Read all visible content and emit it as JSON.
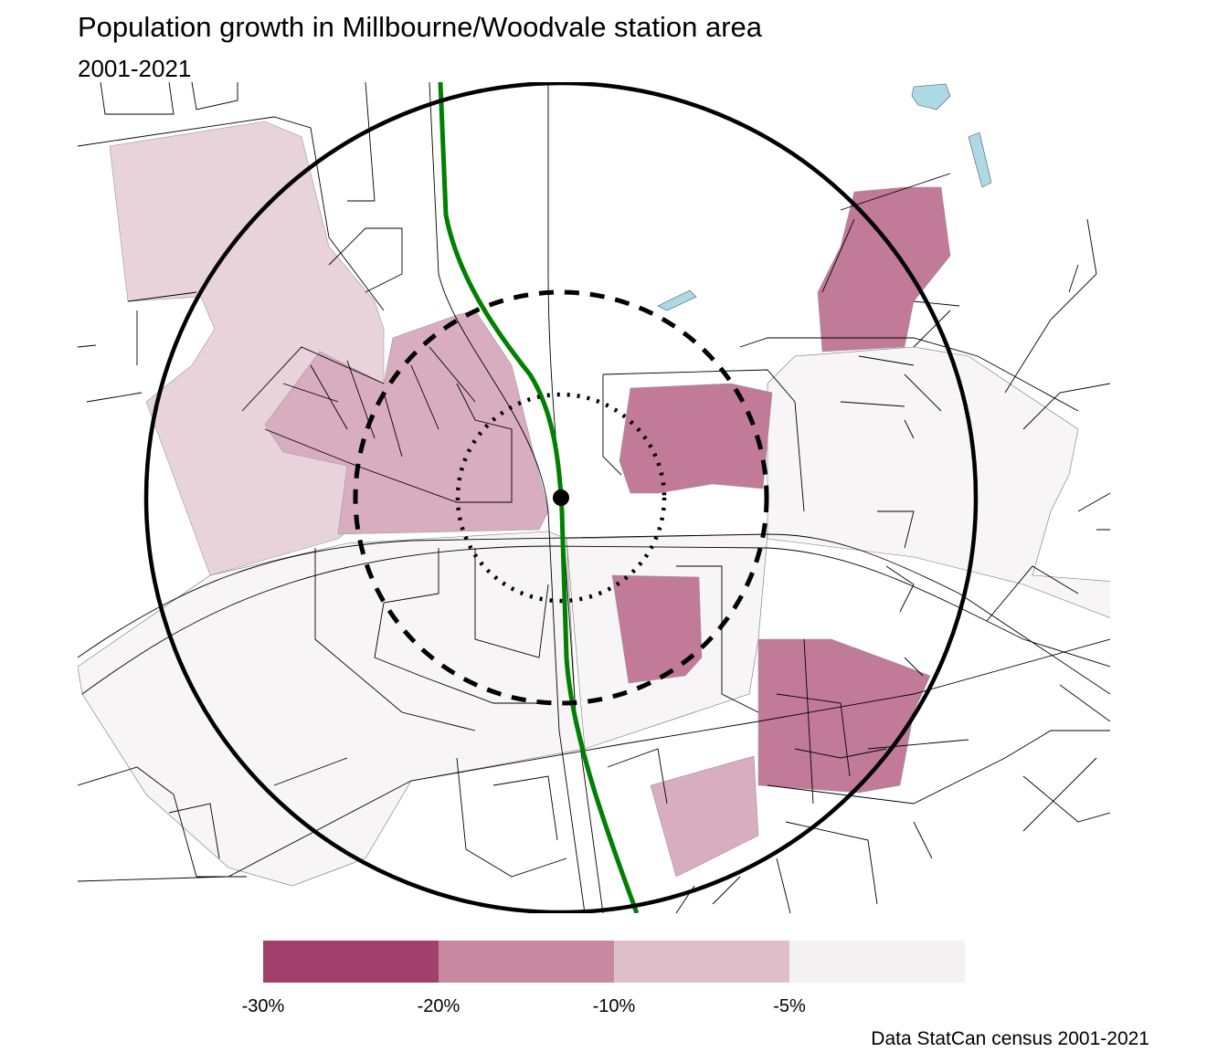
{
  "title": "Population growth in Millbourne/Woodvale station area",
  "subtitle": "2001-2021",
  "caption": "Data StatCan census 2001-2021",
  "legend": {
    "bins": [
      {
        "label": "-30%",
        "color": "#a23f6b"
      },
      {
        "label": "-20%",
        "color": "#c8889f"
      },
      {
        "label": "-10%",
        "color": "#e1bfca"
      },
      {
        "label": "-5%",
        "color": "#f3f1f2"
      }
    ]
  },
  "colors": {
    "transit_line": "#008000",
    "water": "#add8e6",
    "tract_light": "#e9d3da",
    "tract_mid": "#d8adbf",
    "tract_dark": "#c17a98",
    "tract_pale": "#f7f5f6"
  }
}
